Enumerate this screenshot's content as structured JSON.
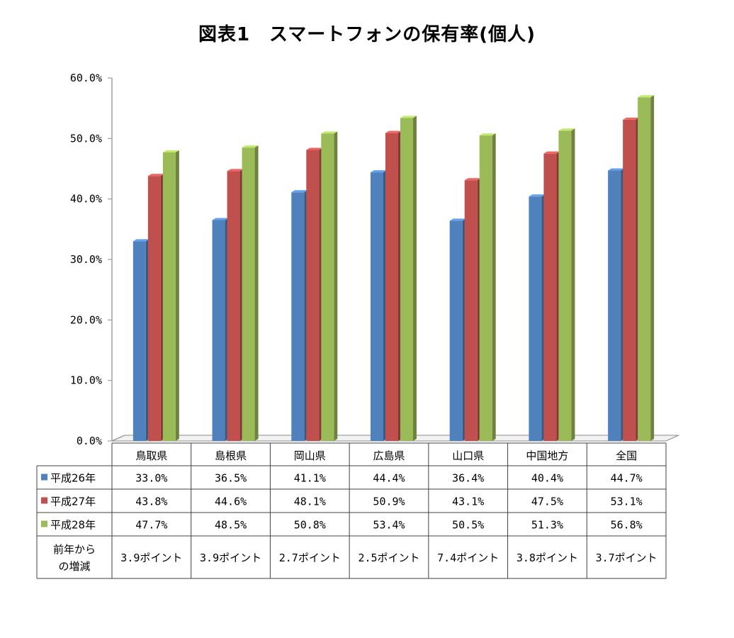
{
  "chart_data": {
    "type": "bar",
    "title": "図表1　スマートフォンの保有率(個人)",
    "categories": [
      "鳥取県",
      "島根県",
      "岡山県",
      "広島県",
      "山口県",
      "中国地方",
      "全国"
    ],
    "series": [
      {
        "name": "平成26年",
        "color": "#4F81BD",
        "values": [
          33.0,
          36.5,
          41.1,
          44.4,
          36.4,
          40.4,
          44.7
        ],
        "labels": [
          "33.0%",
          "36.5%",
          "41.1%",
          "44.4%",
          "36.4%",
          "40.4%",
          "44.7%"
        ]
      },
      {
        "name": "平成27年",
        "color": "#C0504D",
        "values": [
          43.8,
          44.6,
          48.1,
          50.9,
          43.1,
          47.5,
          53.1
        ],
        "labels": [
          "43.8%",
          "44.6%",
          "48.1%",
          "50.9%",
          "43.1%",
          "47.5%",
          "53.1%"
        ]
      },
      {
        "name": "平成28年",
        "color": "#9BBB59",
        "values": [
          47.7,
          48.5,
          50.8,
          53.4,
          50.5,
          51.3,
          56.8
        ],
        "labels": [
          "47.7%",
          "48.5%",
          "50.8%",
          "53.4%",
          "50.5%",
          "51.3%",
          "56.8%"
        ]
      }
    ],
    "change_row": {
      "label_line1": "前年から",
      "label_line2": "の増減",
      "values": [
        "3.9ポイント",
        "3.9ポイント",
        "2.7ポイント",
        "2.5ポイント",
        "7.4ポイント",
        "3.8ポイント",
        "3.7ポイント"
      ]
    },
    "ylim": [
      0,
      60
    ],
    "yticks": [
      "0.0%",
      "10.0%",
      "20.0%",
      "30.0%",
      "40.0%",
      "50.0%",
      "60.0%"
    ],
    "grid": false,
    "legend": "table-left"
  }
}
